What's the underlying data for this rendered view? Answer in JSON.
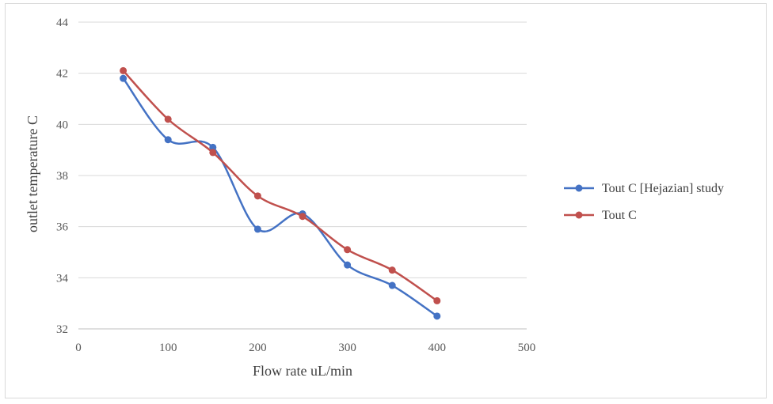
{
  "chart_data": {
    "type": "line",
    "smooth": true,
    "title": "",
    "xlabel": "Flow rate uL/min",
    "ylabel": "outlet temperature C",
    "xlim": [
      0,
      500
    ],
    "ylim": [
      32,
      44
    ],
    "xticks": [
      0,
      100,
      200,
      300,
      400,
      500
    ],
    "yticks": [
      32,
      34,
      36,
      38,
      40,
      42,
      44
    ],
    "grid": "horizontal",
    "legend_position": "right",
    "x": [
      50,
      100,
      150,
      200,
      250,
      300,
      350,
      400
    ],
    "series": [
      {
        "name": "Tout C [Hejazian] study",
        "color": "#4472c4",
        "values": [
          41.8,
          39.4,
          39.1,
          35.9,
          36.5,
          34.5,
          33.7,
          32.5
        ]
      },
      {
        "name": "Tout C",
        "color": "#c0504d",
        "values": [
          42.1,
          40.2,
          38.9,
          37.2,
          36.4,
          35.1,
          34.3,
          33.1
        ]
      }
    ]
  }
}
